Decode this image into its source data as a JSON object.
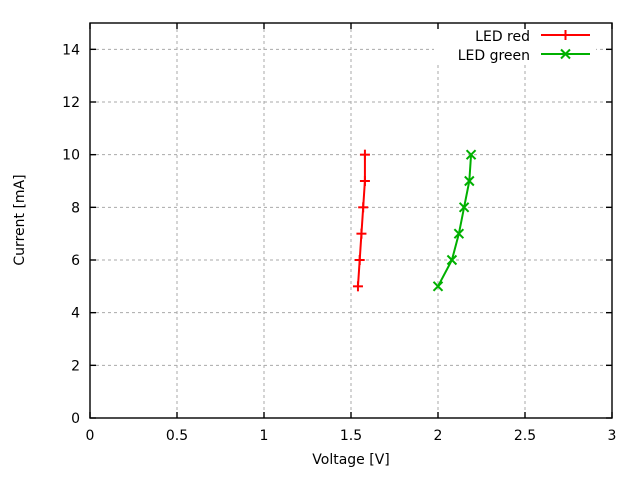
{
  "chart_data": {
    "type": "line",
    "title": "",
    "xlabel": "Voltage [V]",
    "ylabel": "Current [mA]",
    "xlim": [
      0,
      3
    ],
    "ylim": [
      0,
      15
    ],
    "xticks": [
      0,
      0.5,
      1,
      1.5,
      2,
      2.5,
      3
    ],
    "xtick_labels": [
      "0",
      "0.5",
      "1",
      "1.5",
      "2",
      "2.5",
      "3"
    ],
    "yticks": [
      0,
      2,
      4,
      6,
      8,
      10,
      12,
      14
    ],
    "ytick_labels": [
      "0",
      "2",
      "4",
      "6",
      "8",
      "10",
      "12",
      "14"
    ],
    "grid": true,
    "grid_style": "dashed",
    "legend_position": "top-right-inside",
    "series": [
      {
        "name": "LED red",
        "color": "#ff0000",
        "marker": "plus",
        "points": [
          [
            1.54,
            5
          ],
          [
            1.55,
            6
          ],
          [
            1.56,
            7
          ],
          [
            1.57,
            8
          ],
          [
            1.58,
            9
          ],
          [
            1.58,
            10
          ]
        ]
      },
      {
        "name": "LED green",
        "color": "#00b000",
        "marker": "cross",
        "points": [
          [
            2.0,
            5
          ],
          [
            2.08,
            6
          ],
          [
            2.12,
            7
          ],
          [
            2.15,
            8
          ],
          [
            2.18,
            9
          ],
          [
            2.19,
            10
          ]
        ]
      }
    ],
    "colors": {
      "background": "#ffffff",
      "border": "#000000",
      "grid": "#a9a9a9",
      "text": "#000000"
    }
  }
}
